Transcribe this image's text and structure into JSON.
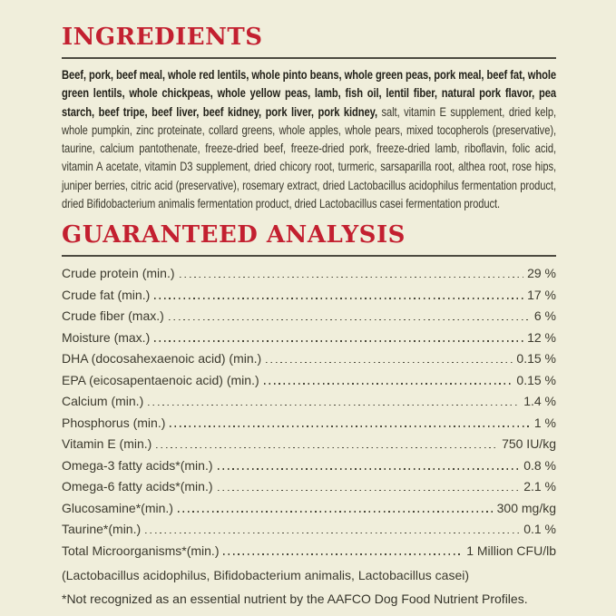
{
  "page": {
    "background_color": "#f0eedb",
    "accent_red": "#c32030",
    "rule_color": "#4c4a40",
    "text_color": "#3a382c"
  },
  "ingredients": {
    "heading": "INGREDIENTS",
    "bold_text": "Beef, pork, beef meal, whole red lentils, whole pinto beans, whole green peas, pork meal, beef fat, whole green lentils, whole chickpeas, whole yellow peas, lamb, fish oil, lentil fiber, natural pork flavor, pea starch, beef tripe, beef liver, beef kidney, pork liver, pork kidney,",
    "regular_text": " salt, vitamin E supplement, dried kelp, whole pumpkin, zinc proteinate, collard greens, whole apples, whole pears, mixed tocopherols (preservative), taurine, calcium pantothenate, freeze-dried beef, freeze-dried pork, freeze-dried lamb, riboflavin, folic acid, vitamin A acetate, vitamin D3 supplement, dried chicory root, turmeric, sarsaparilla root, althea root, rose hips, juniper berries, citric acid (preservative), rosemary extract, dried Lactobacillus acidophilus fermentation product, dried Bifidobacterium animalis fermentation product, dried Lactobacillus casei fermentation product."
  },
  "guaranteed_analysis": {
    "heading": "GUARANTEED ANALYSIS",
    "rows": [
      {
        "label": "Crude protein (min.)",
        "value": "29 %"
      },
      {
        "label": "Crude fat (min.)",
        "value": "17 %"
      },
      {
        "label": "Crude fiber (max.)",
        "value": "6 %"
      },
      {
        "label": "Moisture (max.)",
        "value": "12 %"
      },
      {
        "label": "DHA (docosahexaenoic acid) (min.)",
        "value": "0.15 %"
      },
      {
        "label": "EPA (eicosapentaenoic acid) (min.)",
        "value": "0.15 %"
      },
      {
        "label": "Calcium (min.)",
        "value": "1.4 %"
      },
      {
        "label": "Phosphorus (min.)",
        "value": "1 %"
      },
      {
        "label": "Vitamin E (min.)",
        "value": "750 IU/kg"
      },
      {
        "label": "Omega-3 fatty acids*(min.)",
        "value": "0.8 %"
      },
      {
        "label": "Omega-6 fatty acids*(min.)",
        "value": "2.1 %"
      },
      {
        "label": "Glucosamine*(min.)",
        "value": "300 mg/kg"
      },
      {
        "label": "Taurine*(min.)",
        "value": "0.1 %"
      },
      {
        "label": "Total Microorganisms*(min.)",
        "value": "1 Million CFU/lb"
      }
    ],
    "microorganisms_note": "(Lactobacillus acidophilus, Bifidobacterium animalis, Lactobacillus casei)",
    "footnote": "*Not recognized as an essential nutrient by the AAFCO Dog Food Nutrient Profiles."
  }
}
